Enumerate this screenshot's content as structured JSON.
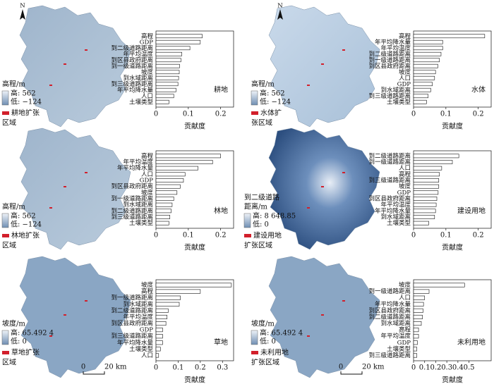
{
  "chart_data": [
    {
      "type": "bar",
      "title": "耕地",
      "x_label": "贡献度",
      "color": "#ffffff",
      "categories": [
        "高程",
        "GDP",
        "到二级道路距离",
        "年平均温度",
        "到区县政府距离",
        "到一级道路距离",
        "坡度",
        "到水域距离",
        "到三级道路距离",
        "年平均降水量",
        "人口",
        "土壤类型"
      ],
      "values": [
        0.143,
        0.137,
        0.105,
        0.08,
        0.077,
        0.073,
        0.072,
        0.07,
        0.068,
        0.062,
        0.055,
        0.04
      ],
      "xlim": [
        0,
        0.24
      ],
      "xticks": [
        0,
        0.1,
        0.2
      ]
    },
    {
      "type": "bar",
      "title": "水体",
      "x_label": "贡献度",
      "color": "#ffffff",
      "categories": [
        "高程",
        "年平均降水量",
        "年平均温度",
        "到二级道路距离",
        "到一级道路距离",
        "到区县政府距离",
        "坡度",
        "人口",
        "GDP",
        "到水域距离",
        "到三级道路距离",
        "土壤类型"
      ],
      "values": [
        0.22,
        0.09,
        0.09,
        0.085,
        0.08,
        0.075,
        0.068,
        0.065,
        0.058,
        0.053,
        0.045,
        0.04
      ],
      "xlim": [
        0,
        0.24
      ],
      "xticks": [
        0,
        0.1,
        0.2
      ]
    },
    {
      "type": "bar",
      "title": "林地",
      "x_label": "贡献度",
      "color": "#ffffff",
      "categories": [
        "高程",
        "年平均温度",
        "年平均降水量",
        "人口",
        "GDP",
        "到区县政府距离",
        "坡度",
        "到一级道路距离",
        "到水域距离",
        "到二级道路距离",
        "到三级道路距离",
        "土壤类型"
      ],
      "values": [
        0.2,
        0.175,
        0.13,
        0.09,
        0.085,
        0.075,
        0.065,
        0.055,
        0.05,
        0.047,
        0.043,
        0.04
      ],
      "xlim": [
        0,
        0.24
      ],
      "xticks": [
        0,
        0.1,
        0.2
      ]
    },
    {
      "type": "bar",
      "title": "建设用地",
      "x_label": "贡献度",
      "color": "#ffffff",
      "categories": [
        "到二级道路距离",
        "到一级道路距离",
        "人口",
        "高程",
        "到三级道路距离",
        "坡度",
        "GDP",
        "到区县政府距离",
        "年平均温度",
        "年平均降水量",
        "到水域距离",
        "土壤类型"
      ],
      "values": [
        0.14,
        0.12,
        0.087,
        0.08,
        0.078,
        0.078,
        0.076,
        0.072,
        0.07,
        0.068,
        0.065,
        0.047
      ],
      "xlim": [
        0,
        0.24
      ],
      "xticks": [
        0,
        0.1,
        0.2
      ]
    },
    {
      "type": "bar",
      "title": "草地",
      "x_label": "贡献度",
      "color": "#ffffff",
      "categories": [
        "坡度",
        "高程",
        "到一级道路距离",
        "到水域距离",
        "到二级道路距离",
        "年平均温度",
        "到区县政府距离",
        "GDP",
        "到三级道路距离",
        "年平均降水量",
        "土壤类型",
        "人口"
      ],
      "values": [
        0.34,
        0.2,
        0.11,
        0.105,
        0.055,
        0.05,
        0.045,
        0.03,
        0.03,
        0.03,
        0.02,
        0.012
      ],
      "xlim": [
        0,
        0.35
      ],
      "xticks": [
        0,
        0.1,
        0.2,
        0.3
      ]
    },
    {
      "type": "bar",
      "title": "未利用地",
      "x_label": "贡献度",
      "color": "#ffffff",
      "categories": [
        "坡度",
        "到一级道路距离",
        "人口",
        "年平均降水量",
        "到区县政府距离",
        "到二级道路距离",
        "到水域距离",
        "高程",
        "年平均温度",
        "GDP",
        "土壤类型",
        "到三级道路距离"
      ],
      "values": [
        0.46,
        0.14,
        0.1,
        0.09,
        0.085,
        0.08,
        0.07,
        0.045,
        0.045,
        0.035,
        0.03,
        0.03
      ],
      "xlim": [
        0,
        0.7
      ],
      "xticks": [
        0,
        0.1,
        0.2,
        0.3,
        0.4,
        0.5
      ]
    }
  ],
  "maps": [
    {
      "legend_title": [
        "高程/m"
      ],
      "high": "高: 562",
      "low": "低: −124",
      "expansion": [
        "耕地扩张",
        "区域"
      ],
      "north": "N"
    },
    {
      "legend_title": [
        "高程/m"
      ],
      "high": "高: 562",
      "low": "低: −124",
      "expansion": [
        "水体扩",
        "张区域"
      ],
      "north": "N"
    },
    {
      "legend_title": [
        "高程/m"
      ],
      "high": "高: 562",
      "low": "低: −124",
      "expansion": [
        "林地扩张",
        "区域"
      ]
    },
    {
      "legend_title": [
        "到二级道路",
        "距离/m"
      ],
      "high": "高: 8 648.85",
      "low": "低: 0",
      "expansion": [
        "建设用地",
        "扩张区域"
      ]
    },
    {
      "legend_title": [
        "坡度/m"
      ],
      "high": "高: 65.492 4",
      "low": "低: 0",
      "expansion": [
        "草地扩张",
        "区域"
      ],
      "scale": [
        "0",
        "20 km"
      ]
    },
    {
      "legend_title": [
        "坡度/m"
      ],
      "high": "高: 65.492 4",
      "low": "低: 0",
      "expansion": [
        "未利用地",
        "扩张区域"
      ],
      "scale": [
        "0",
        "20 km"
      ]
    }
  ]
}
